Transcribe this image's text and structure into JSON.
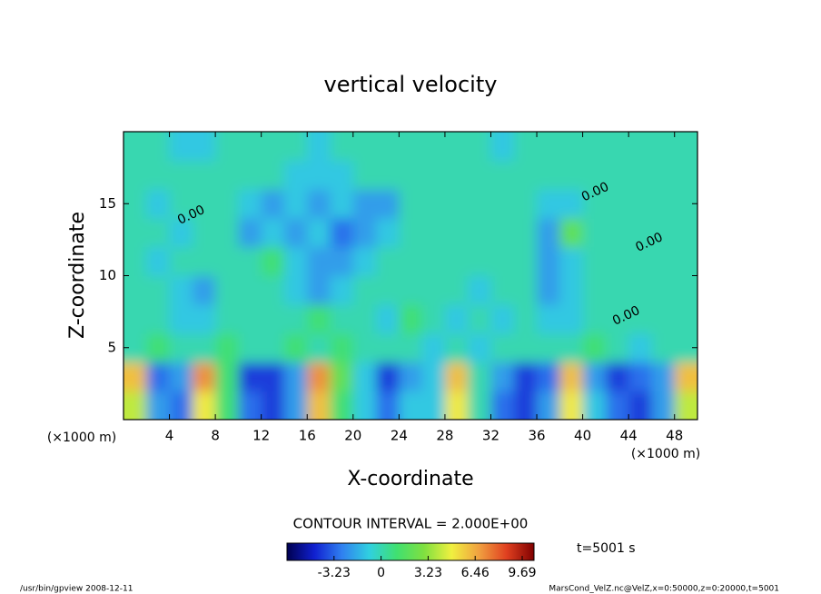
{
  "chart_data": {
    "type": "heatmap",
    "title": "vertical velocity",
    "xlabel": "X-coordinate",
    "ylabel": "Z-coordinate",
    "x_unit_left": "(×1000 m)",
    "x_unit_right": "(×1000 m)",
    "xlim": [
      0,
      50
    ],
    "ylim": [
      0,
      20
    ],
    "xticks": [
      4,
      8,
      12,
      16,
      20,
      24,
      28,
      32,
      36,
      40,
      44,
      48
    ],
    "yticks": [
      5,
      10,
      15
    ],
    "z": [
      [
        4,
        -2,
        -3,
        5,
        1,
        -3,
        -4,
        -2,
        6,
        1,
        -1,
        -3,
        -1,
        -1,
        5,
        0,
        -3,
        -4,
        -2,
        5,
        -1,
        -3,
        -4,
        -2,
        4
      ],
      [
        6,
        -3,
        -2,
        7,
        1,
        -4,
        -4,
        -2,
        7,
        2,
        -1,
        -4,
        -2,
        -1,
        6,
        0,
        -2,
        -4,
        -3,
        6,
        -2,
        -4,
        -3,
        -2,
        6
      ],
      [
        0,
        1,
        0,
        0,
        1,
        0,
        0,
        1,
        0,
        1,
        0,
        0,
        0,
        -1,
        0,
        -1,
        0,
        0,
        0,
        0,
        1,
        0,
        -1,
        0,
        0
      ],
      [
        0,
        0,
        -1,
        -1,
        0,
        0,
        0,
        0,
        1,
        0,
        0,
        -1,
        1,
        0,
        -1,
        0,
        -1,
        0,
        -1,
        -1,
        0,
        0,
        0,
        0,
        0
      ],
      [
        0,
        0,
        -1,
        -2,
        0,
        0,
        0,
        -1,
        -2,
        -1,
        0,
        0,
        0,
        0,
        0,
        -1,
        0,
        0,
        -2,
        -1,
        0,
        0,
        0,
        0,
        0
      ],
      [
        0,
        -1,
        0,
        0,
        0,
        0,
        1,
        -1,
        -2,
        -2,
        -1,
        0,
        0,
        0,
        0,
        0,
        0,
        0,
        -2,
        -1,
        0,
        0,
        0,
        0,
        0
      ],
      [
        0,
        0,
        -1,
        0,
        0,
        -2,
        -1,
        -2,
        -1,
        -3,
        -2,
        -1,
        0,
        0,
        0,
        0,
        0,
        0,
        -2,
        2,
        0,
        0,
        0,
        0,
        0
      ],
      [
        0,
        -1,
        0,
        0,
        0,
        -1,
        -2,
        -1,
        -2,
        -1,
        -2,
        -2,
        0,
        0,
        0,
        0,
        0,
        0,
        -1,
        -1,
        0,
        0,
        0,
        0,
        0
      ],
      [
        0,
        0,
        0,
        0,
        0,
        0,
        0,
        -1,
        -1,
        -1,
        0,
        0,
        0,
        0,
        0,
        0,
        0,
        0,
        0,
        0,
        0,
        0,
        0,
        0,
        0
      ],
      [
        0,
        0,
        -1,
        -1,
        0,
        0,
        0,
        0,
        -1,
        0,
        0,
        0,
        0,
        0,
        0,
        0,
        -1,
        0,
        0,
        0,
        0,
        0,
        0,
        0,
        0
      ]
    ],
    "contour_labels": [
      {
        "text": "0.00",
        "x": 5.9,
        "y": 14.2
      },
      {
        "text": "0.00",
        "x": 41.1,
        "y": 15.8
      },
      {
        "text": "0.00",
        "x": 45.8,
        "y": 12.3
      },
      {
        "text": "0.00",
        "x": 43.8,
        "y": 7.2
      }
    ],
    "contour_interval": "CONTOUR INTERVAL = 2.000E+00",
    "time_label": "t=5001 s",
    "colormap": [
      "#000050",
      "#1020d0",
      "#3080f0",
      "#30d0e0",
      "#40e070",
      "#80e040",
      "#f0f040",
      "#f0a040",
      "#e04020",
      "#800000"
    ],
    "colorbar": {
      "lim": [
        -6.46,
        10.5
      ],
      "ticks": [
        -3.23,
        0,
        3.23,
        6.46,
        9.69
      ]
    },
    "footer_left": "/usr/bin/gpview   2008-12-11",
    "footer_right": "MarsCond_VelZ.nc@VelZ,x=0:50000,z=0:20000,t=5001"
  }
}
